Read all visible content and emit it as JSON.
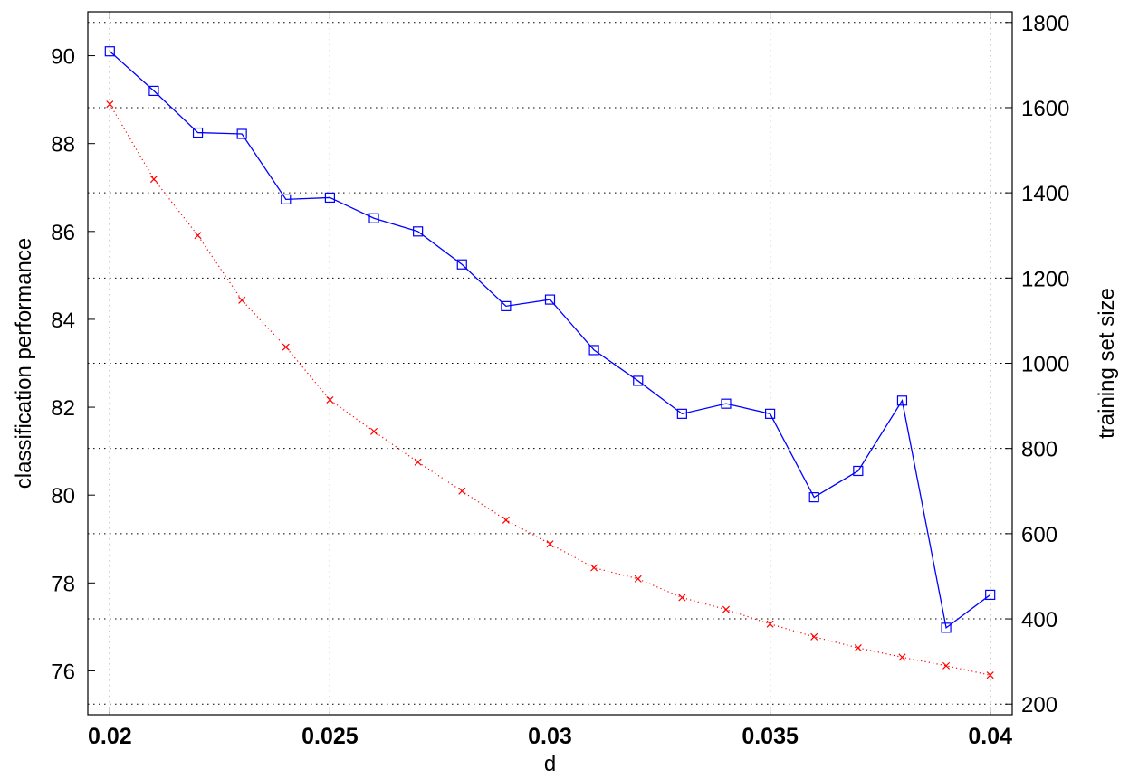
{
  "chart_data": {
    "type": "line",
    "title": "",
    "xlabel": "d",
    "ylabel": "classification performance",
    "y2label": "training set size",
    "xlim": [
      0.0195,
      0.0405
    ],
    "ylim": [
      75,
      91
    ],
    "y2lim": [
      175,
      1825
    ],
    "grid": true,
    "x_ticks": [
      "0.02",
      "0.025",
      "0.03",
      "0.035",
      "0.04"
    ],
    "y_ticks": [
      "76",
      "78",
      "80",
      "82",
      "84",
      "86",
      "88",
      "90"
    ],
    "y2_ticks": [
      "200",
      "400",
      "600",
      "800",
      "1000",
      "1200",
      "1400",
      "1600",
      "1800"
    ],
    "x": [
      0.02,
      0.021,
      0.022,
      0.023,
      0.024,
      0.025,
      0.026,
      0.027,
      0.028,
      0.029,
      0.03,
      0.031,
      0.032,
      0.033,
      0.034,
      0.035,
      0.036,
      0.037,
      0.038,
      0.039,
      0.04
    ],
    "series": [
      {
        "axis": "left",
        "color": "#0000ff",
        "marker": "square",
        "line": "solid",
        "values": [
          90.1,
          89.2,
          88.25,
          88.22,
          86.73,
          86.77,
          86.3,
          86.0,
          85.25,
          84.3,
          84.45,
          83.3,
          82.6,
          81.85,
          82.08,
          81.85,
          79.95,
          80.55,
          82.15,
          76.98,
          77.73
        ]
      },
      {
        "axis": "right",
        "color": "#ff0000",
        "marker": "x",
        "line": "dotted",
        "values": [
          1608,
          1432,
          1300,
          1148,
          1038,
          914,
          840,
          768,
          700,
          632,
          576,
          520,
          494,
          450,
          422,
          388,
          358,
          332,
          310,
          290,
          268
        ]
      }
    ]
  }
}
